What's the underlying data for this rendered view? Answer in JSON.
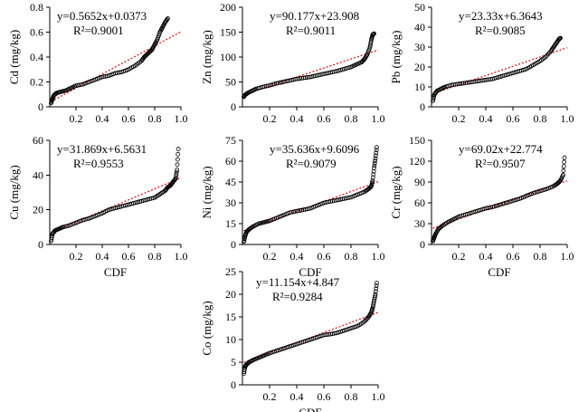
{
  "chart_data": [
    {
      "type": "scatter",
      "id": "cd",
      "ylabel": "Cd (mg/kg)",
      "xlabel": "",
      "xlim": [
        0,
        1.0
      ],
      "ylim": [
        0,
        0.8
      ],
      "xticks": [
        "0.2",
        "0.4",
        "0.6",
        "0.8",
        "1.0"
      ],
      "yticks": [
        "0",
        "0.2",
        "0.4",
        "0.6",
        "0.8"
      ],
      "equation": "y=0.5652x+0.0373",
      "r2": "R²=0.9001",
      "fit": {
        "slope": 0.5652,
        "intercept": 0.0373
      },
      "x": [
        0.01,
        0.02,
        0.03,
        0.05,
        0.08,
        0.12,
        0.16,
        0.2,
        0.25,
        0.3,
        0.35,
        0.4,
        0.45,
        0.5,
        0.55,
        0.6,
        0.65,
        0.7,
        0.72,
        0.74,
        0.76,
        0.78,
        0.8,
        0.82,
        0.84,
        0.86,
        0.88,
        0.9
      ],
      "values": [
        0.03,
        0.06,
        0.09,
        0.11,
        0.12,
        0.13,
        0.15,
        0.17,
        0.18,
        0.2,
        0.22,
        0.24,
        0.25,
        0.27,
        0.28,
        0.3,
        0.33,
        0.37,
        0.4,
        0.42,
        0.44,
        0.46,
        0.5,
        0.54,
        0.6,
        0.64,
        0.68,
        0.71
      ]
    },
    {
      "type": "scatter",
      "id": "zn",
      "ylabel": "Zn (mg/kg)",
      "xlabel": "",
      "xlim": [
        0,
        1.0
      ],
      "ylim": [
        0,
        200
      ],
      "xticks": [
        "0.2",
        "0.4",
        "0.6",
        "0.8",
        "1.0"
      ],
      "yticks": [
        "0",
        "50",
        "100",
        "150",
        "200"
      ],
      "equation": "y=90.177x+23.908",
      "r2": "R²=0.9011",
      "fit": {
        "slope": 90.177,
        "intercept": 23.908
      },
      "x": [
        0.01,
        0.02,
        0.04,
        0.07,
        0.1,
        0.15,
        0.2,
        0.25,
        0.3,
        0.35,
        0.4,
        0.45,
        0.5,
        0.55,
        0.6,
        0.65,
        0.7,
        0.75,
        0.8,
        0.84,
        0.88,
        0.9,
        0.92,
        0.94,
        0.95,
        0.96,
        0.97
      ],
      "values": [
        20,
        24,
        28,
        32,
        36,
        40,
        43,
        47,
        50,
        53,
        56,
        58,
        60,
        63,
        66,
        69,
        72,
        76,
        80,
        85,
        90,
        96,
        105,
        120,
        135,
        145,
        147
      ]
    },
    {
      "type": "scatter",
      "id": "pb",
      "ylabel": "Pb (mg/kg)",
      "xlabel": "",
      "xlim": [
        0,
        1.0
      ],
      "ylim": [
        0,
        50
      ],
      "xticks": [
        "0.2",
        "0.4",
        "0.6",
        "0.8",
        "1.0"
      ],
      "yticks": [
        "0",
        "10",
        "20",
        "30",
        "40",
        "50"
      ],
      "equation": "y=23.33x+6.3643",
      "r2": "R²=0.9085",
      "fit": {
        "slope": 23.33,
        "intercept": 6.3643
      },
      "x": [
        0.01,
        0.02,
        0.04,
        0.07,
        0.1,
        0.15,
        0.2,
        0.25,
        0.3,
        0.35,
        0.4,
        0.45,
        0.5,
        0.55,
        0.6,
        0.65,
        0.7,
        0.75,
        0.8,
        0.84,
        0.88,
        0.9,
        0.92,
        0.94,
        0.95
      ],
      "values": [
        3,
        6,
        8,
        9,
        10,
        11,
        11.5,
        12,
        12.5,
        13,
        13.5,
        14,
        15,
        16,
        17,
        18,
        19,
        21,
        23,
        25,
        28,
        30,
        32,
        34,
        34.5
      ]
    },
    {
      "type": "scatter",
      "id": "cu",
      "ylabel": "Cu (mg/kg)",
      "xlabel": "CDF",
      "xlim": [
        0,
        1.0
      ],
      "ylim": [
        0,
        60
      ],
      "xticks": [
        "0.2",
        "0.4",
        "0.6",
        "0.8",
        "1.0"
      ],
      "yticks": [
        "0",
        "20",
        "40",
        "60"
      ],
      "equation": "y=31.869x+6.5631",
      "r2": "R²=0.9553",
      "fit": {
        "slope": 31.869,
        "intercept": 6.5631
      },
      "x": [
        0.01,
        0.02,
        0.04,
        0.07,
        0.1,
        0.15,
        0.2,
        0.25,
        0.3,
        0.35,
        0.4,
        0.45,
        0.5,
        0.55,
        0.6,
        0.65,
        0.7,
        0.75,
        0.8,
        0.84,
        0.88,
        0.9,
        0.92,
        0.94,
        0.96,
        0.97,
        0.98
      ],
      "values": [
        2,
        6,
        8,
        9,
        10,
        11,
        12.5,
        14,
        15,
        16.5,
        18,
        20,
        21,
        22,
        23,
        24,
        25,
        26,
        27,
        29,
        31,
        33,
        34,
        36,
        38,
        43,
        55
      ]
    },
    {
      "type": "scatter",
      "id": "ni",
      "ylabel": "Ni (mg/kg)",
      "xlabel": "CDF",
      "xlim": [
        0,
        1.0
      ],
      "ylim": [
        0,
        75
      ],
      "xticks": [
        "0.2",
        "0.4",
        "0.6",
        "0.8",
        "1.0"
      ],
      "yticks": [
        "0",
        "15",
        "30",
        "45",
        "60",
        "75"
      ],
      "equation": "y=35.636x+9.6096",
      "r2": "R²=0.9079",
      "fit": {
        "slope": 35.636,
        "intercept": 9.6096
      },
      "x": [
        0.01,
        0.02,
        0.03,
        0.05,
        0.08,
        0.12,
        0.16,
        0.2,
        0.25,
        0.3,
        0.35,
        0.4,
        0.45,
        0.5,
        0.55,
        0.6,
        0.65,
        0.7,
        0.75,
        0.8,
        0.85,
        0.9,
        0.93,
        0.95,
        0.96,
        0.97,
        0.98,
        0.99
      ],
      "values": [
        2,
        6,
        9,
        11,
        13,
        15,
        16,
        17,
        19,
        21,
        23,
        24,
        25,
        26,
        28,
        30,
        31,
        32,
        33,
        34,
        36,
        38,
        40,
        42,
        46,
        55,
        62,
        70
      ]
    },
    {
      "type": "scatter",
      "id": "cr",
      "ylabel": "Cr (mg/kg)",
      "xlabel": "CDF",
      "xlim": [
        0,
        1.0
      ],
      "ylim": [
        0,
        150
      ],
      "xticks": [
        "0.2",
        "0.4",
        "0.6",
        "0.8",
        "1.0"
      ],
      "yticks": [
        "0",
        "30",
        "60",
        "90",
        "120",
        "150"
      ],
      "equation": "y=69.02x+22.774",
      "r2": "R²=0.9507",
      "fit": {
        "slope": 69.02,
        "intercept": 22.774
      },
      "x": [
        0.01,
        0.02,
        0.03,
        0.05,
        0.08,
        0.12,
        0.16,
        0.2,
        0.25,
        0.3,
        0.35,
        0.4,
        0.45,
        0.5,
        0.55,
        0.6,
        0.65,
        0.7,
        0.75,
        0.8,
        0.85,
        0.9,
        0.93,
        0.95,
        0.97,
        0.98
      ],
      "values": [
        5,
        10,
        15,
        22,
        27,
        32,
        36,
        40,
        43,
        46,
        49,
        52,
        54,
        57,
        60,
        63,
        66,
        70,
        74,
        77,
        80,
        84,
        88,
        92,
        100,
        125
      ]
    },
    {
      "type": "scatter",
      "id": "co",
      "ylabel": "Co (mg/kg)",
      "xlabel": "CDF",
      "xlim": [
        0,
        1.0
      ],
      "ylim": [
        0,
        25
      ],
      "xticks": [
        "0.2",
        "0.4",
        "0.6",
        "0.8",
        "1.0"
      ],
      "yticks": [
        "0",
        "5",
        "10",
        "15",
        "20",
        "25"
      ],
      "equation": "y=11.154x+4.847",
      "r2": "R²=0.9284",
      "fit": {
        "slope": 11.154,
        "intercept": 4.847
      },
      "x": [
        0.01,
        0.02,
        0.03,
        0.05,
        0.08,
        0.12,
        0.16,
        0.2,
        0.25,
        0.3,
        0.35,
        0.4,
        0.45,
        0.5,
        0.55,
        0.6,
        0.65,
        0.7,
        0.75,
        0.8,
        0.85,
        0.9,
        0.93,
        0.95,
        0.96,
        0.97,
        0.98,
        0.99
      ],
      "values": [
        2.5,
        4,
        4.5,
        5,
        5.5,
        6,
        6.5,
        7,
        7.5,
        8,
        8.5,
        9,
        9.5,
        10,
        10.5,
        11,
        11.2,
        11.5,
        12,
        12.5,
        13,
        14,
        15,
        16,
        17,
        18.5,
        20,
        22.5
      ]
    }
  ]
}
